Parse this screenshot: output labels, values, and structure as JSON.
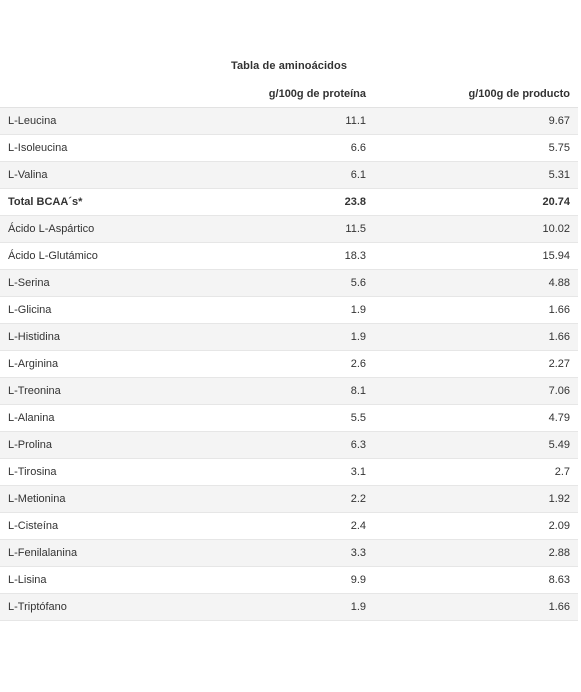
{
  "table": {
    "caption": "Tabla de aminoácidos",
    "headers": {
      "name": "",
      "protein": "g/100g de proteína",
      "product": "g/100g de producto"
    },
    "rows": [
      {
        "name": "L-Leucina",
        "protein": "11.1",
        "product": "9.67",
        "bold": false
      },
      {
        "name": "L-Isoleucina",
        "protein": "6.6",
        "product": "5.75",
        "bold": false
      },
      {
        "name": "L-Valina",
        "protein": "6.1",
        "product": "5.31",
        "bold": false
      },
      {
        "name": "Total BCAA´s*",
        "protein": "23.8",
        "product": "20.74",
        "bold": true
      },
      {
        "name": "Ácido L-Aspártico",
        "protein": "11.5",
        "product": "10.02",
        "bold": false
      },
      {
        "name": "Ácido L-Glutámico",
        "protein": "18.3",
        "product": "15.94",
        "bold": false
      },
      {
        "name": "L-Serina",
        "protein": "5.6",
        "product": "4.88",
        "bold": false
      },
      {
        "name": "L-Glicina",
        "protein": "1.9",
        "product": "1.66",
        "bold": false
      },
      {
        "name": "L-Histidina",
        "protein": "1.9",
        "product": "1.66",
        "bold": false
      },
      {
        "name": "L-Arginina",
        "protein": "2.6",
        "product": "2.27",
        "bold": false
      },
      {
        "name": "L-Treonina",
        "protein": "8.1",
        "product": "7.06",
        "bold": false
      },
      {
        "name": "L-Alanina",
        "protein": "5.5",
        "product": "4.79",
        "bold": false
      },
      {
        "name": "L-Prolina",
        "protein": "6.3",
        "product": "5.49",
        "bold": false
      },
      {
        "name": "L-Tirosina",
        "protein": "3.1",
        "product": "2.7",
        "bold": false
      },
      {
        "name": "L-Metionina",
        "protein": "2.2",
        "product": "1.92",
        "bold": false
      },
      {
        "name": "L-Cisteína",
        "protein": "2.4",
        "product": "2.09",
        "bold": false
      },
      {
        "name": "L-Fenilalanina",
        "protein": "3.3",
        "product": "2.88",
        "bold": false
      },
      {
        "name": "L-Lisina",
        "protein": "9.9",
        "product": "8.63",
        "bold": false
      },
      {
        "name": "L-Triptófano",
        "protein": "1.9",
        "product": "1.66",
        "bold": false
      }
    ]
  }
}
